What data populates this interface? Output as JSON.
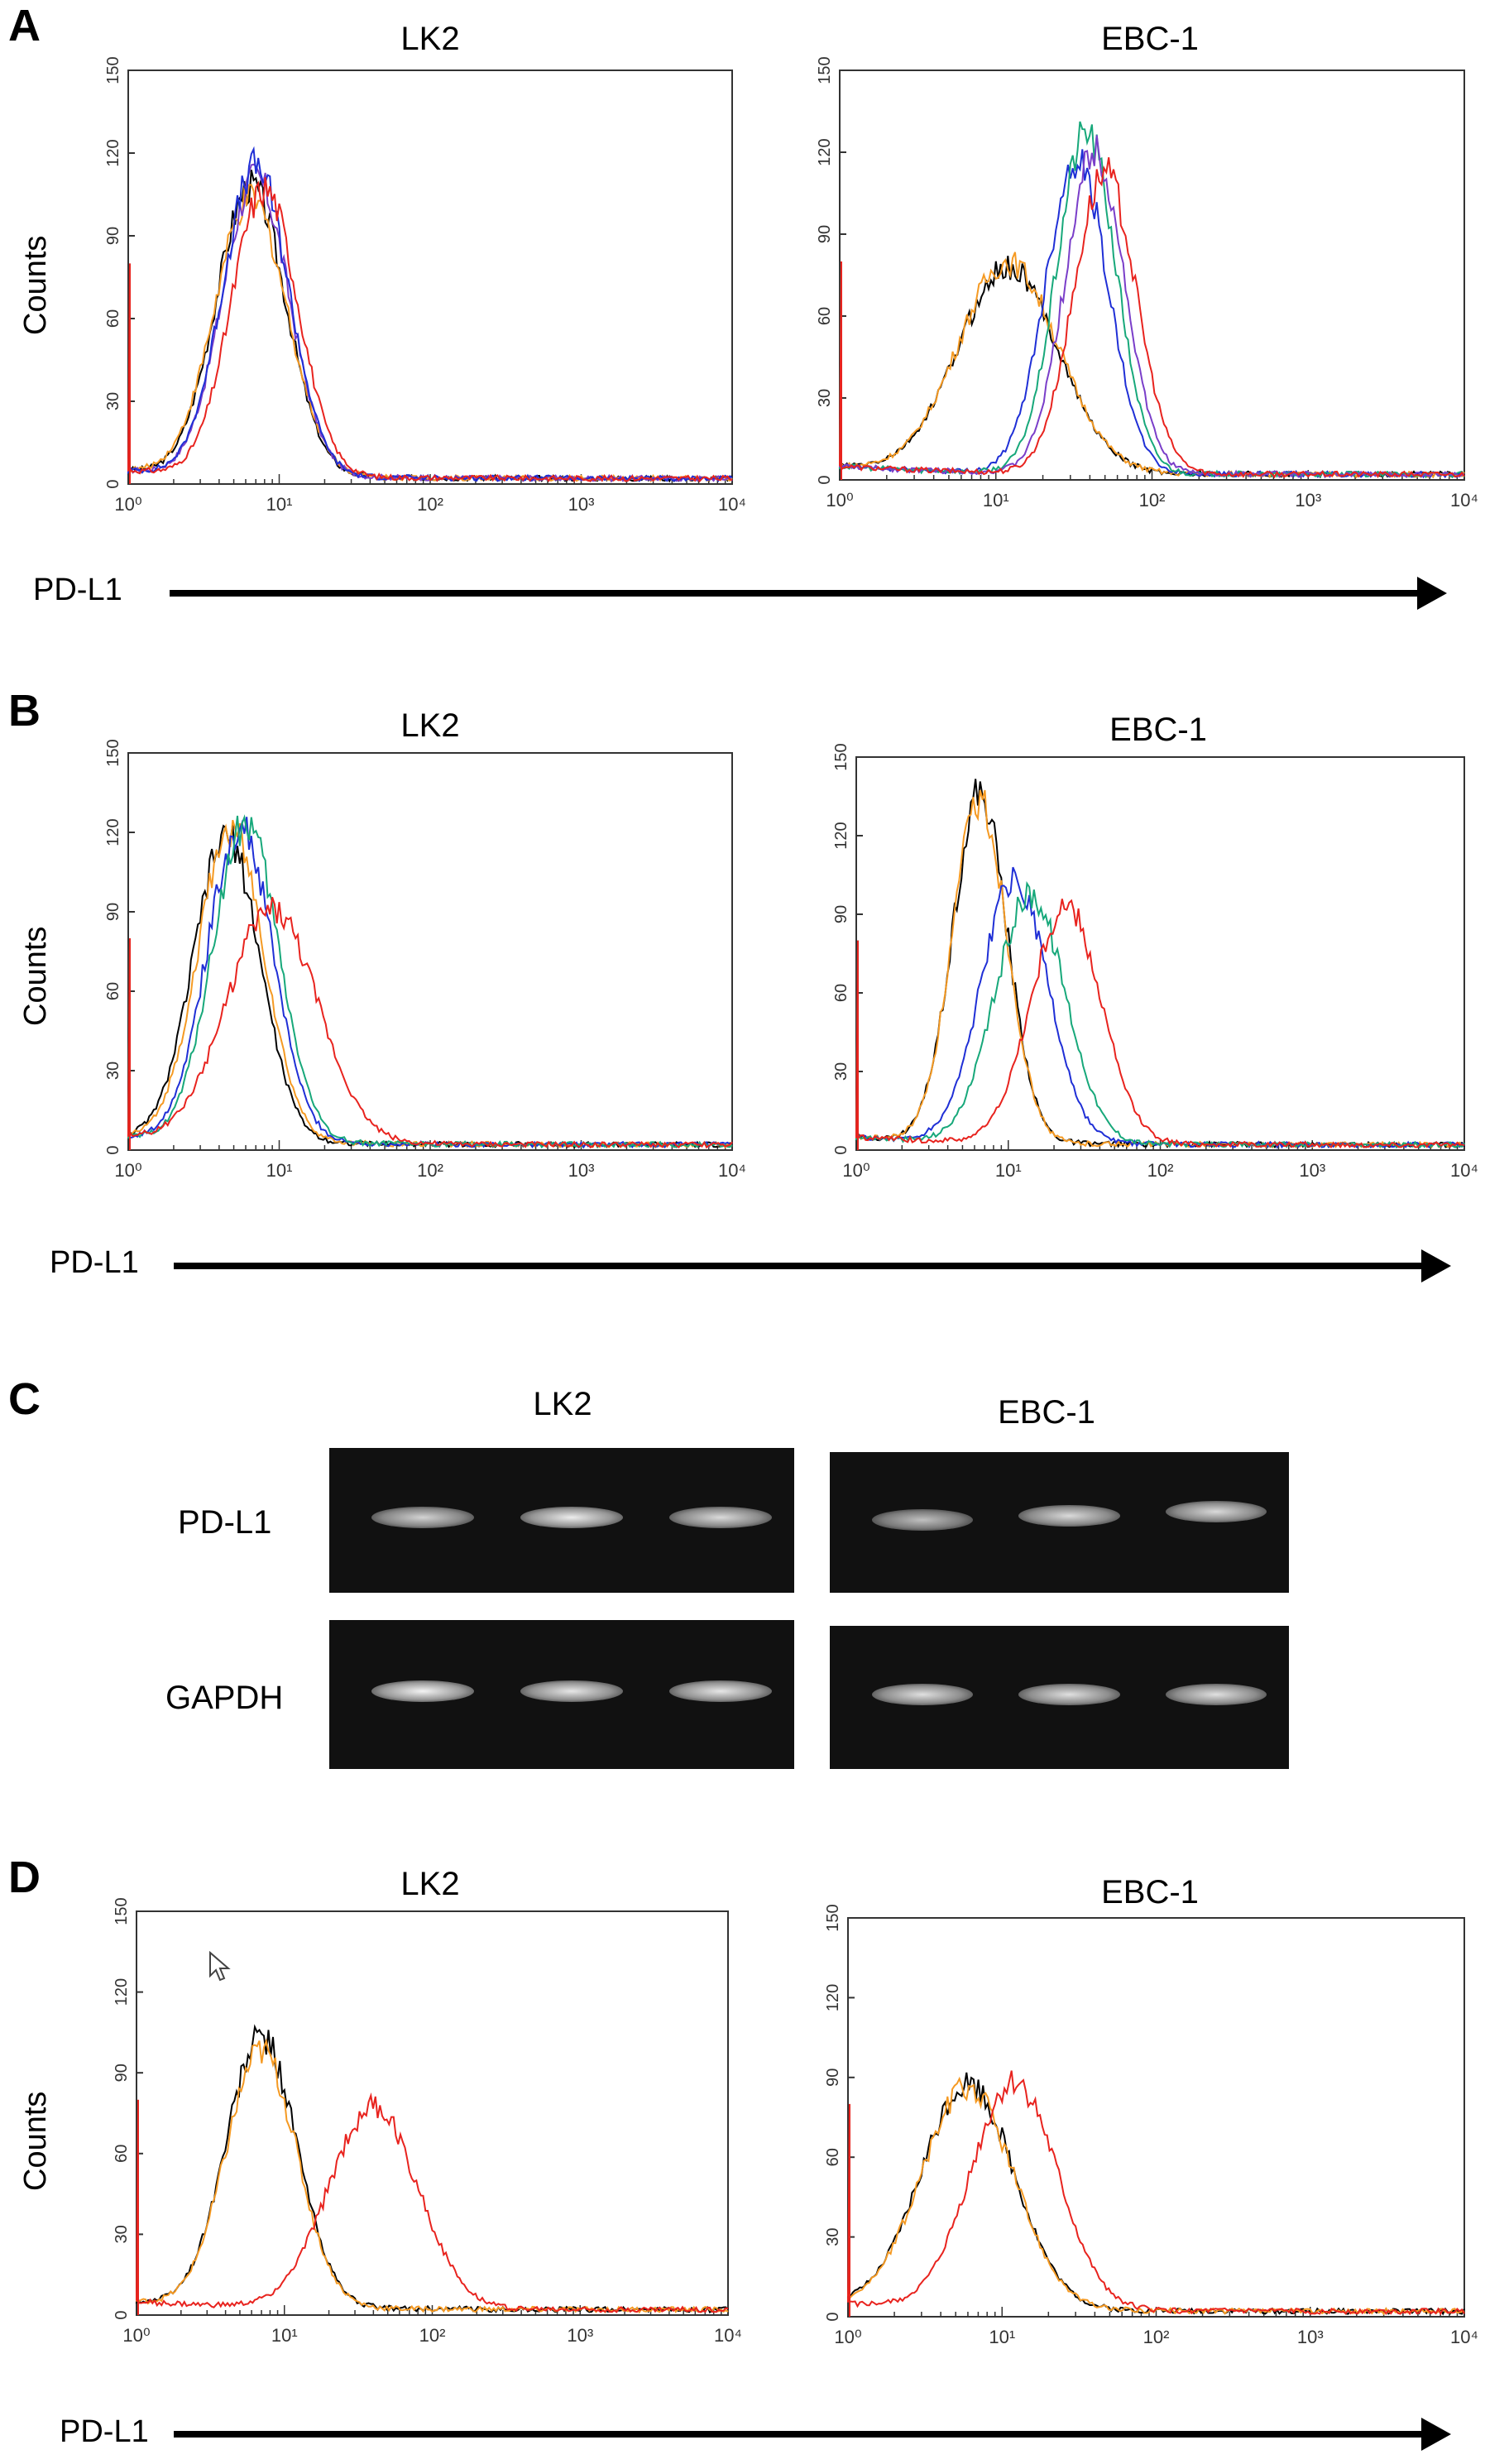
{
  "panels": [
    {
      "letter": "A",
      "ylabel": "Counts",
      "xlabel": "PD-L1"
    },
    {
      "letter": "B",
      "ylabel": "Counts",
      "xlabel": "PD-L1"
    },
    {
      "letter": "C"
    },
    {
      "letter": "D",
      "ylabel": "Counts",
      "xlabel": "PD-L1"
    }
  ],
  "cell_lines": [
    "LK2",
    "EBC-1"
  ],
  "gel": {
    "row_labels": [
      "PD-L1",
      "GAPDH"
    ],
    "titles": [
      "LK2",
      "EBC-1"
    ],
    "band_intensity": {
      "LK2": {
        "PD-L1": [
          0.7,
          0.9,
          0.75
        ],
        "GAPDH": [
          0.95,
          0.85,
          0.85
        ]
      },
      "EBC-1": {
        "PD-L1": [
          0.55,
          0.75,
          0.75
        ],
        "GAPDH": [
          0.8,
          0.8,
          0.8
        ]
      }
    }
  },
  "colors": {
    "black": "#000000",
    "orange": "#f59a23",
    "blue": "#1f2fd6",
    "green": "#17a87a",
    "red": "#e8231e",
    "purple": "#7a3ec9"
  },
  "chart_data": [
    {
      "type": "line",
      "panel": "A",
      "title": "LK2",
      "xscale": "log",
      "xlim": [
        1,
        10000
      ],
      "ylim": [
        0,
        150
      ],
      "xticks": [
        "10⁰",
        "10¹",
        "10²",
        "10³",
        "10⁴"
      ],
      "yticks": [
        "0",
        "30",
        "60",
        "90",
        "120",
        "150"
      ],
      "series": [
        {
          "color": "#000000",
          "peak_x": 6.5,
          "peak_y": 105,
          "width": 0.23
        },
        {
          "color": "#f59a23",
          "peak_x": 6.5,
          "peak_y": 100,
          "width": 0.24
        },
        {
          "color": "#7a3ec9",
          "peak_x": 7.0,
          "peak_y": 108,
          "width": 0.22
        },
        {
          "color": "#1f2fd6",
          "peak_x": 7.0,
          "peak_y": 112,
          "width": 0.22
        },
        {
          "color": "#e8231e",
          "peak_x": 8.0,
          "peak_y": 104,
          "width": 0.22
        }
      ]
    },
    {
      "type": "line",
      "panel": "A",
      "title": "EBC-1",
      "xscale": "log",
      "xlim": [
        1,
        10000
      ],
      "ylim": [
        0,
        150
      ],
      "xticks": [
        "10⁰",
        "10¹",
        "10²",
        "10³",
        "10⁴"
      ],
      "yticks": [
        "0",
        "30",
        "60",
        "90",
        "120",
        "150"
      ],
      "series": [
        {
          "color": "#000000",
          "peak_x": 12,
          "peak_y": 75,
          "width": 0.32
        },
        {
          "color": "#f59a23",
          "peak_x": 12,
          "peak_y": 77,
          "width": 0.32
        },
        {
          "color": "#1f2fd6",
          "peak_x": 33,
          "peak_y": 115,
          "width": 0.2
        },
        {
          "color": "#17a87a",
          "peak_x": 38,
          "peak_y": 125,
          "width": 0.19
        },
        {
          "color": "#7a3ec9",
          "peak_x": 43,
          "peak_y": 118,
          "width": 0.19
        },
        {
          "color": "#e8231e",
          "peak_x": 50,
          "peak_y": 110,
          "width": 0.2
        }
      ]
    },
    {
      "type": "line",
      "panel": "B",
      "title": "LK2",
      "xscale": "log",
      "xlim": [
        1,
        10000
      ],
      "ylim": [
        0,
        150
      ],
      "xticks": [
        "10⁰",
        "10¹",
        "10²",
        "10³",
        "10⁴"
      ],
      "yticks": [
        "0",
        "30",
        "60",
        "90",
        "120",
        "150"
      ],
      "series": [
        {
          "color": "#000000",
          "peak_x": 4.5,
          "peak_y": 115,
          "width": 0.22
        },
        {
          "color": "#f59a23",
          "peak_x": 4.8,
          "peak_y": 118,
          "width": 0.22
        },
        {
          "color": "#1f2fd6",
          "peak_x": 5.5,
          "peak_y": 118,
          "width": 0.22
        },
        {
          "color": "#17a87a",
          "peak_x": 6.0,
          "peak_y": 120,
          "width": 0.22
        },
        {
          "color": "#e8231e",
          "peak_x": 9.0,
          "peak_y": 88,
          "width": 0.3
        }
      ]
    },
    {
      "type": "line",
      "panel": "B",
      "title": "EBC-1",
      "xscale": "log",
      "xlim": [
        1,
        10000
      ],
      "ylim": [
        0,
        150
      ],
      "xticks": [
        "10⁰",
        "10¹",
        "10²",
        "10³",
        "10⁴"
      ],
      "yticks": [
        "0",
        "30",
        "60",
        "90",
        "120",
        "150"
      ],
      "series": [
        {
          "color": "#000000",
          "peak_x": 6.5,
          "peak_y": 133,
          "width": 0.18
        },
        {
          "color": "#f59a23",
          "peak_x": 6.5,
          "peak_y": 130,
          "width": 0.18
        },
        {
          "color": "#1f2fd6",
          "peak_x": 11,
          "peak_y": 100,
          "width": 0.22
        },
        {
          "color": "#17a87a",
          "peak_x": 14,
          "peak_y": 95,
          "width": 0.23
        },
        {
          "color": "#e8231e",
          "peak_x": 24,
          "peak_y": 90,
          "width": 0.23
        }
      ]
    },
    {
      "type": "line",
      "panel": "D",
      "title": "LK2",
      "xscale": "log",
      "xlim": [
        1,
        10000
      ],
      "ylim": [
        0,
        150
      ],
      "xticks": [
        "10⁰",
        "10¹",
        "10²",
        "10³",
        "10⁴"
      ],
      "yticks": [
        "0",
        "30",
        "60",
        "90",
        "120",
        "150"
      ],
      "series": [
        {
          "color": "#000000",
          "peak_x": 7,
          "peak_y": 100,
          "width": 0.24
        },
        {
          "color": "#f59a23",
          "peak_x": 7,
          "peak_y": 95,
          "width": 0.24
        },
        {
          "color": "#e8231e",
          "peak_x": 40,
          "peak_y": 75,
          "width": 0.3
        }
      ]
    },
    {
      "type": "line",
      "panel": "D",
      "title": "EBC-1",
      "xscale": "log",
      "xlim": [
        1,
        10000
      ],
      "ylim": [
        0,
        150
      ],
      "xticks": [
        "10⁰",
        "10¹",
        "10²",
        "10³",
        "10⁴"
      ],
      "yticks": [
        "0",
        "30",
        "60",
        "90",
        "120",
        "150"
      ],
      "series": [
        {
          "color": "#000000",
          "peak_x": 6,
          "peak_y": 85,
          "width": 0.3
        },
        {
          "color": "#f59a23",
          "peak_x": 6,
          "peak_y": 83,
          "width": 0.3
        },
        {
          "color": "#e8231e",
          "peak_x": 12,
          "peak_y": 85,
          "width": 0.28
        }
      ]
    }
  ]
}
